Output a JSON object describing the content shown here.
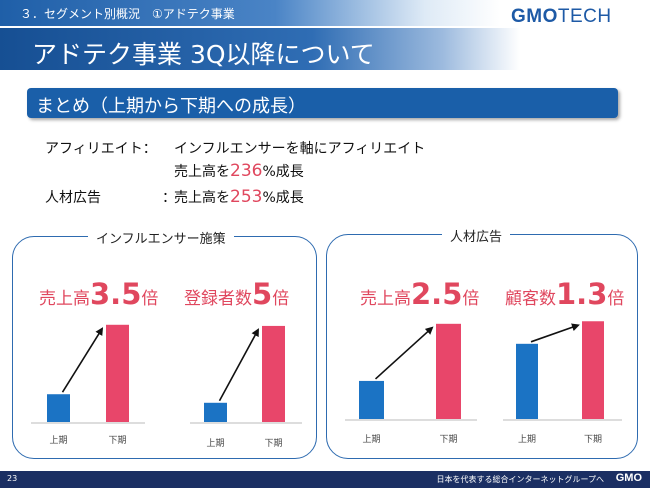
{
  "header": {
    "section": "３．セグメント別概況　①アドテク事業",
    "title": "アドテク事業 3Q以降について",
    "logo_gmo": "GMO",
    "logo_tech": "TECH"
  },
  "summary": {
    "title": "まとめ（上期から下期への成長）",
    "rows": [
      {
        "label": "アフィリエイト：",
        "line1": "インフルエンサーを軸にアフィリエイト",
        "pre": "売上高を",
        "value": "236",
        "post": "%成長"
      },
      {
        "label": "人材広告",
        "colon": "：",
        "pre": "売上高を",
        "value": "253",
        "post": "%成長"
      }
    ]
  },
  "panels": [
    {
      "title": "インフルエンサー施策",
      "metrics": [
        {
          "label": "売上高",
          "value": "3.5",
          "unit": "倍"
        },
        {
          "label": "登録者数",
          "value": "5",
          "unit": "倍"
        }
      ]
    },
    {
      "title": "人材広告",
      "metrics": [
        {
          "label": "売上高",
          "value": "2.5",
          "unit": "倍"
        },
        {
          "label": "顧客数",
          "value": "1.3",
          "unit": "倍"
        }
      ]
    }
  ],
  "chart_data": [
    {
      "type": "bar",
      "categories": [
        "上期",
        "下期"
      ],
      "values": [
        1,
        3.5
      ],
      "colors": [
        "#1b73c4",
        "#e8466a"
      ],
      "ylim": [
        0,
        3.6
      ]
    },
    {
      "type": "bar",
      "categories": [
        "上期",
        "下期"
      ],
      "values": [
        1,
        5
      ],
      "colors": [
        "#1b73c4",
        "#e8466a"
      ],
      "ylim": [
        0,
        5.1
      ]
    },
    {
      "type": "bar",
      "categories": [
        "上期",
        "下期"
      ],
      "values": [
        1,
        2.5
      ],
      "colors": [
        "#1b73c4",
        "#e8466a"
      ],
      "ylim": [
        0,
        2.6
      ]
    },
    {
      "type": "bar",
      "categories": [
        "上期",
        "下期"
      ],
      "values": [
        1,
        1.3
      ],
      "colors": [
        "#1b73c4",
        "#e8466a"
      ],
      "ylim": [
        0,
        1.33
      ]
    }
  ],
  "footer": {
    "page": "23",
    "tagline": "日本を代表する総合インターネットグループへ",
    "logo": "GMO"
  }
}
